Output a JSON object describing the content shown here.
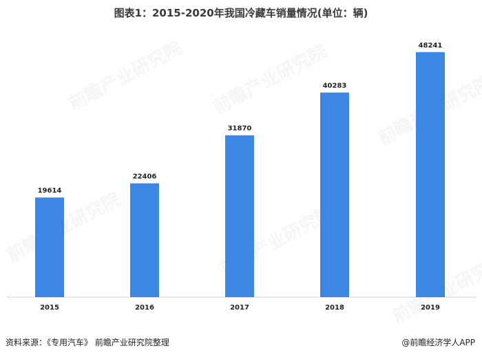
{
  "header": {
    "title": "图表1：2015-2020年我国冷藏车销量情况(单位：辆)"
  },
  "footer": {
    "source": "资料来源：《专用汽车》 前瞻产业研究院整理",
    "brand": "@前瞻经济学人APP"
  },
  "watermark": {
    "text": "前瞻产业研究院"
  },
  "chart_data": {
    "type": "bar",
    "title": "图表1：2015-2020年我国冷藏车销量情况(单位：辆)",
    "categories": [
      "2015",
      "2016",
      "2017",
      "2018",
      "2019"
    ],
    "values": [
      19614,
      22406,
      31870,
      40283,
      48241
    ],
    "xlabel": "",
    "ylabel": "",
    "ylim": [
      0,
      52000
    ],
    "grid": false,
    "legend": "none",
    "colors": {
      "bar": "#3d86e3"
    }
  }
}
